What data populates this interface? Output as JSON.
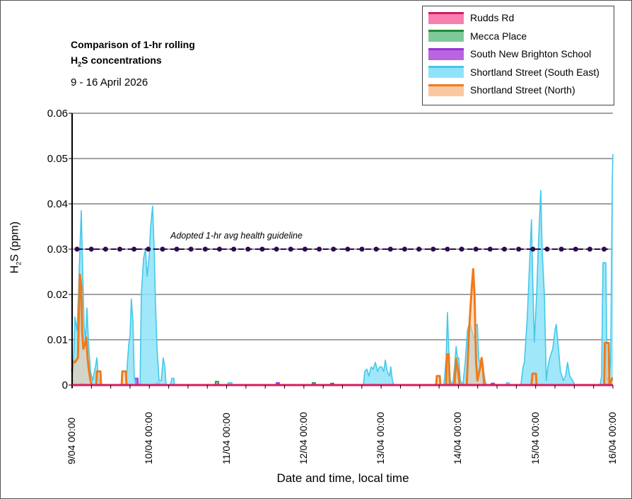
{
  "chart_data": {
    "type": "area",
    "title": {
      "line1": "Comparison of 1-hr rolling",
      "line2_prefix": "H",
      "line2_sub": "2",
      "line2_suffix": "S concentrations"
    },
    "subtitle": "9 - 16 April 2026",
    "ylabel": {
      "prefix": "H",
      "sub": "2",
      "suffix": "S (ppm)"
    },
    "xlabel": "Date and time, local time",
    "ylim": [
      0,
      0.06
    ],
    "yticks": [
      "0",
      "0.01",
      "0.02",
      "0.03",
      "0.04",
      "0.05",
      "0.06"
    ],
    "x_unit": "hours since 9/04 00:00",
    "xlim": [
      0,
      168
    ],
    "xticks": [
      "9/04 00:00",
      "10/04 00:00",
      "11/04 00:00",
      "12/04 00:00",
      "13/04 00:00",
      "14/04 00:00",
      "15/04 00:00",
      "16/04 00:00"
    ],
    "grid": true,
    "legend_position": "top-right",
    "guideline": {
      "label": "Adopted 1-hr avg health guideline",
      "value": 0.03,
      "color": "#2d0a4e"
    },
    "series": [
      {
        "name": "Rudds Rd",
        "line": "#d81b60",
        "fill": "#f77fb0",
        "points": [
          [
            0,
            0
          ],
          [
            168,
            0
          ]
        ]
      },
      {
        "name": "Mecca Place",
        "line": "#1e8c3a",
        "fill": "#7fc998",
        "spikes": [
          [
            45.0,
            0.0008
          ],
          [
            75.1,
            0.0005
          ],
          [
            80.8,
            0.0004
          ]
        ]
      },
      {
        "name": "South New Brighton School",
        "line": "#9b30d9",
        "fill": "#b865e0",
        "spikes": [
          [
            3.3,
            0.0004
          ],
          [
            20.0,
            0.0015
          ],
          [
            26.6,
            0.0005
          ],
          [
            63.9,
            0.0005
          ],
          [
            119.7,
            0.0004
          ],
          [
            130.7,
            0.0004
          ],
          [
            166.0,
            0.0005
          ]
        ]
      },
      {
        "name": "Shortland Street (South East)",
        "line": "#45c8ea",
        "fill": "#8fe3f8",
        "points": [
          [
            0,
            0
          ],
          [
            0.44,
            0.005
          ],
          [
            0.88,
            0.015
          ],
          [
            1.54,
            0.012
          ],
          [
            1.98,
            0.02
          ],
          [
            2.42,
            0.03
          ],
          [
            2.85,
            0.0385
          ],
          [
            3.29,
            0.025
          ],
          [
            3.73,
            0.013
          ],
          [
            4.17,
            0.01
          ],
          [
            4.61,
            0.017
          ],
          [
            5.05,
            0.01
          ],
          [
            5.71,
            0.003
          ],
          [
            6.37,
            0.001
          ],
          [
            7.25,
            0.004
          ],
          [
            7.69,
            0.006
          ],
          [
            8.12,
            0.002
          ],
          [
            8.56,
            0
          ],
          [
            16.7,
            0
          ],
          [
            17.1,
            0.004
          ],
          [
            17.6,
            0.009
          ],
          [
            18.0,
            0.011
          ],
          [
            18.4,
            0.019
          ],
          [
            18.9,
            0.014
          ],
          [
            19.3,
            0.002
          ],
          [
            19.8,
            0
          ],
          [
            21.1,
            0
          ],
          [
            21.5,
            0.02
          ],
          [
            22.2,
            0.028
          ],
          [
            22.8,
            0.03
          ],
          [
            23.3,
            0.024
          ],
          [
            23.9,
            0.028
          ],
          [
            24.4,
            0.035
          ],
          [
            25.0,
            0.0395
          ],
          [
            25.5,
            0.03
          ],
          [
            25.9,
            0.018
          ],
          [
            26.4,
            0.008
          ],
          [
            27.0,
            0.001
          ],
          [
            27.7,
            0.001
          ],
          [
            28.3,
            0.006
          ],
          [
            28.8,
            0.004
          ],
          [
            29.2,
            0
          ],
          [
            30.5,
            0
          ],
          [
            31.0,
            0.0015
          ],
          [
            31.6,
            0.0015
          ],
          [
            31.8,
            0
          ],
          [
            48.3,
            0
          ],
          [
            48.5,
            0.0005
          ],
          [
            49.6,
            0.0005
          ],
          [
            49.8,
            0
          ],
          [
            90.5,
            0
          ],
          [
            90.9,
            0.003
          ],
          [
            91.6,
            0.0035
          ],
          [
            92.2,
            0.002
          ],
          [
            92.9,
            0.004
          ],
          [
            93.5,
            0.0035
          ],
          [
            94.2,
            0.005
          ],
          [
            94.9,
            0.003
          ],
          [
            95.5,
            0.004
          ],
          [
            96.2,
            0.004
          ],
          [
            96.8,
            0.003
          ],
          [
            97.3,
            0.0055
          ],
          [
            97.9,
            0.003
          ],
          [
            98.6,
            0.002
          ],
          [
            99.0,
            0.004
          ],
          [
            99.5,
            0.001
          ],
          [
            99.9,
            0
          ],
          [
            115.5,
            0
          ],
          [
            116.2,
            0.006
          ],
          [
            116.6,
            0.016
          ],
          [
            117.1,
            0.006
          ],
          [
            117.5,
            0.001
          ],
          [
            118.2,
            0
          ],
          [
            118.8,
            0.004
          ],
          [
            119.3,
            0.0085
          ],
          [
            119.7,
            0.006
          ],
          [
            120.1,
            0.006
          ],
          [
            120.6,
            0.001
          ],
          [
            121.4,
            0
          ],
          [
            122.1,
            0.005
          ],
          [
            122.8,
            0.012
          ],
          [
            123.5,
            0.014
          ],
          [
            124.2,
            0.012
          ],
          [
            124.9,
            0.01
          ],
          [
            125.4,
            0.013
          ],
          [
            125.9,
            0.0134
          ],
          [
            126.3,
            0.006
          ],
          [
            127.0,
            0.004
          ],
          [
            127.6,
            0.004
          ],
          [
            128.3,
            0.001
          ],
          [
            128.7,
            0
          ],
          [
            134.8,
            0
          ],
          [
            135.0,
            0.0005
          ],
          [
            135.7,
            0.0005
          ],
          [
            135.9,
            0
          ],
          [
            139.4,
            0
          ],
          [
            140.1,
            0.004
          ],
          [
            140.5,
            0.005
          ],
          [
            141.4,
            0.015
          ],
          [
            142.3,
            0.03
          ],
          [
            142.7,
            0.0365
          ],
          [
            143.2,
            0.02
          ],
          [
            143.6,
            0.0095
          ],
          [
            144.3,
            0.02
          ],
          [
            144.9,
            0.032
          ],
          [
            145.6,
            0.043
          ],
          [
            146.0,
            0.03
          ],
          [
            146.7,
            0.02
          ],
          [
            147.3,
            0.001
          ],
          [
            147.8,
            0.004
          ],
          [
            148.4,
            0.006
          ],
          [
            149.3,
            0.008
          ],
          [
            150.0,
            0.012
          ],
          [
            150.4,
            0.0134
          ],
          [
            151.1,
            0.008
          ],
          [
            151.7,
            0.003
          ],
          [
            152.6,
            0.001
          ],
          [
            153.3,
            0.002
          ],
          [
            153.9,
            0.005
          ],
          [
            154.6,
            0.002
          ],
          [
            155.5,
            0.001
          ],
          [
            156.1,
            0
          ],
          [
            164.0,
            0
          ],
          [
            164.5,
            0.002
          ],
          [
            164.9,
            0.027
          ],
          [
            165.8,
            0.027
          ],
          [
            166.2,
            0.001
          ],
          [
            166.9,
            0.002
          ],
          [
            167.3,
            0.005
          ],
          [
            167.8,
            0.045
          ],
          [
            168,
            0.051
          ]
        ]
      },
      {
        "name": "Shortland Street (North)",
        "line": "#f07a1a",
        "fill": "#fbc7a0",
        "points": [
          [
            0,
            0.003
          ],
          [
            0.2,
            0.0053
          ],
          [
            0.9,
            0.005
          ],
          [
            1.8,
            0.006
          ],
          [
            2.2,
            0.018
          ],
          [
            2.4,
            0.0244
          ],
          [
            2.85,
            0.022
          ],
          [
            3.1,
            0.012
          ],
          [
            3.5,
            0.008
          ],
          [
            4.0,
            0.009
          ],
          [
            4.4,
            0.0105
          ],
          [
            4.8,
            0.006
          ],
          [
            5.1,
            0.004
          ],
          [
            5.7,
            0.001
          ],
          [
            6.1,
            0
          ],
          [
            7.5,
            0
          ],
          [
            7.7,
            0.003
          ],
          [
            8.8,
            0.003
          ],
          [
            9.0,
            0
          ],
          [
            15.4,
            0
          ],
          [
            15.6,
            0.003
          ],
          [
            16.7,
            0.003
          ],
          [
            16.9,
            0
          ],
          [
            113.1,
            0
          ],
          [
            113.3,
            0.002
          ],
          [
            114.2,
            0.002
          ],
          [
            114.4,
            0
          ],
          [
            116.2,
            0
          ],
          [
            116.4,
            0.0068
          ],
          [
            117.0,
            0.0068
          ],
          [
            117.3,
            0
          ],
          [
            118.8,
            0
          ],
          [
            119.3,
            0.0058
          ],
          [
            119.7,
            0.004
          ],
          [
            120.1,
            0.002
          ],
          [
            120.4,
            0
          ],
          [
            122.6,
            0
          ],
          [
            123.3,
            0.012
          ],
          [
            124.2,
            0.022
          ],
          [
            124.6,
            0.0256
          ],
          [
            125.0,
            0.02
          ],
          [
            125.5,
            0.005
          ],
          [
            125.9,
            0.001
          ],
          [
            126.8,
            0.004
          ],
          [
            127.2,
            0.006
          ],
          [
            127.6,
            0.004
          ],
          [
            128.0,
            0
          ],
          [
            142.7,
            0
          ],
          [
            143.0,
            0.0025
          ],
          [
            144.1,
            0.0025
          ],
          [
            144.3,
            0
          ],
          [
            165.3,
            0
          ],
          [
            165.5,
            0.0093
          ],
          [
            166.7,
            0.0093
          ],
          [
            166.9,
            0
          ],
          [
            167.8,
            0.0015
          ],
          [
            168,
            0.0015
          ]
        ]
      }
    ]
  }
}
